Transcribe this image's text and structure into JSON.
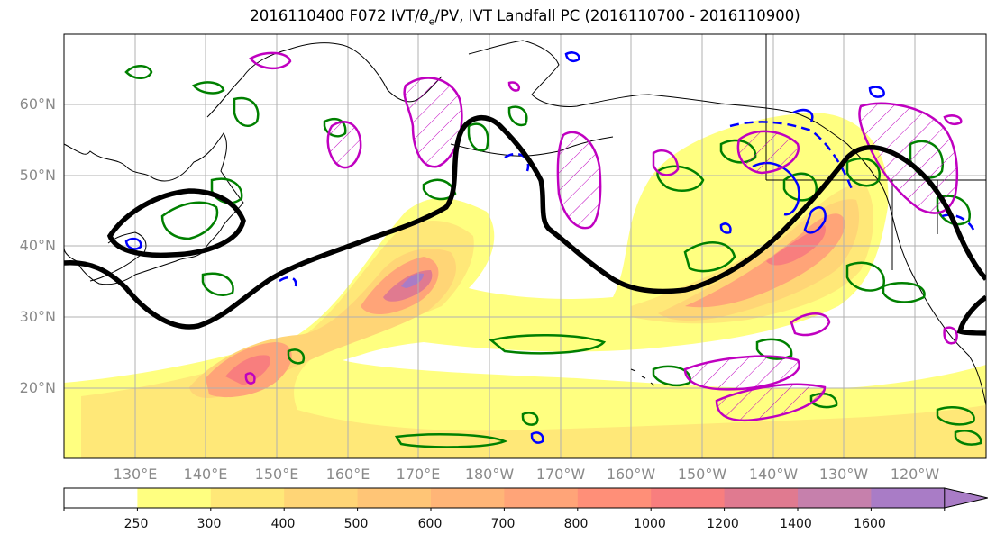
{
  "title": {
    "prefix": "2016110400 F072 IVT/",
    "theta": "θ",
    "theta_sub": "e",
    "suffix": "/PV, IVT Landfall PC (2016110700 - 2016110900)"
  },
  "axes": {
    "lat_labels": [
      "60°N",
      "50°N",
      "40°N",
      "30°N",
      "20°N"
    ],
    "lon_labels": [
      "130°E",
      "140°E",
      "150°E",
      "160°E",
      "170°E",
      "180°W",
      "170°W",
      "160°W",
      "150°W",
      "140°W",
      "130°W",
      "120°W"
    ]
  },
  "colorbar": {
    "levels": [
      "250",
      "300",
      "400",
      "500",
      "600",
      "700",
      "800",
      "1000",
      "1200",
      "1400",
      "1600"
    ],
    "colors": [
      "#ffff80",
      "#ffe878",
      "#ffd576",
      "#ffc576",
      "#ffb577",
      "#ffa478",
      "#ff8f78",
      "#f87e7e",
      "#e07a90",
      "#c680ac",
      "#a97cc6"
    ]
  },
  "contour_colors": {
    "theta_e": "#008000",
    "pv": "#0000ff",
    "landfall": "#c000c0",
    "pc": "#000000"
  }
}
